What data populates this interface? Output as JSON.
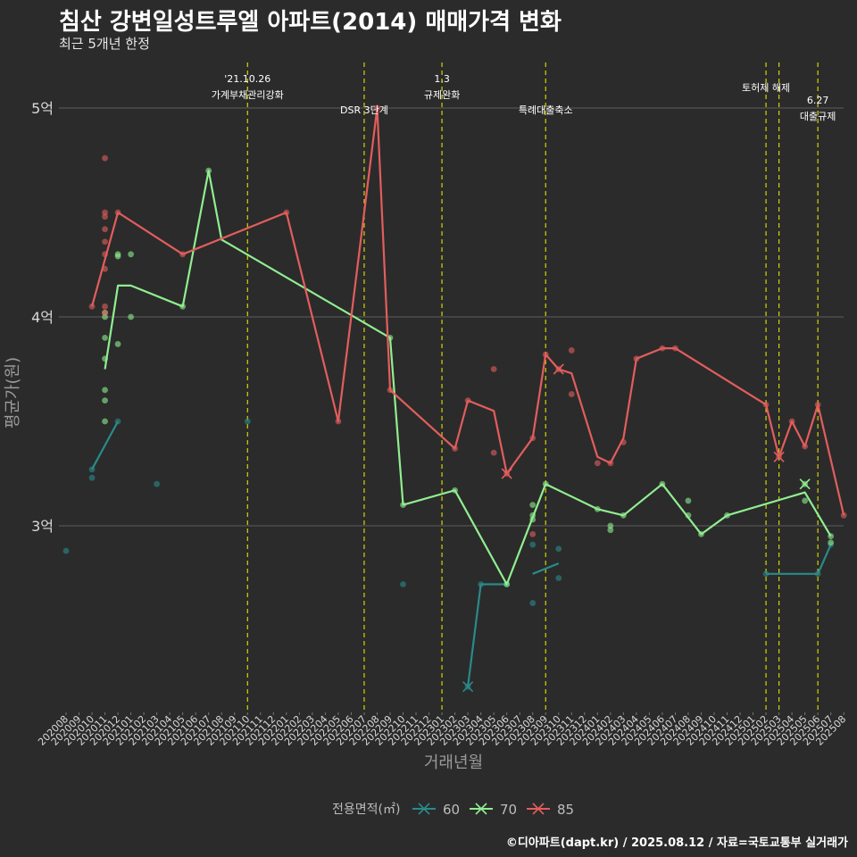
{
  "title": "침산 강변일성트루엘 아파트(2014) 매매가격 변화",
  "subtitle": "최근 5개년 한정",
  "footer": "©디아파트(dapt.kr) / 2025.08.12 / 자료=국토교통부 실거래가",
  "chart_data": {
    "type": "line",
    "xlabel": "거래년월",
    "ylabel": "평균가(원)",
    "ylim": [
      2.15,
      5.3
    ],
    "yticks": [
      {
        "v": 3,
        "label": "3억"
      },
      {
        "v": 4,
        "label": "4억"
      },
      {
        "v": 5,
        "label": "5억"
      }
    ],
    "grid": true,
    "legend_title": "전용면적(㎡)",
    "legend_position": "bottom",
    "categories": [
      "202008",
      "202009",
      "202010",
      "202011",
      "202012",
      "202101",
      "202102",
      "202103",
      "202104",
      "202105",
      "202106",
      "202107",
      "202108",
      "202109",
      "202110",
      "202111",
      "202112",
      "202201",
      "202202",
      "202203",
      "202204",
      "202205",
      "202206",
      "202207",
      "202208",
      "202209",
      "202210",
      "202211",
      "202212",
      "202301",
      "202302",
      "202303",
      "202304",
      "202305",
      "202306",
      "202307",
      "202308",
      "202309",
      "202310",
      "202311",
      "202312",
      "202401",
      "202402",
      "202403",
      "202404",
      "202405",
      "202406",
      "202407",
      "202408",
      "202409",
      "202410",
      "202411",
      "202412",
      "202501",
      "202502",
      "202503",
      "202504",
      "202505",
      "202506",
      "202507",
      "202508"
    ],
    "series": [
      {
        "name": "60",
        "color": "#2a8a8a",
        "lines": [
          [
            [
              "202010",
              3.27
            ],
            [
              "202012",
              3.5
            ]
          ],
          [
            [
              "202303",
              2.23
            ],
            [
              "202304",
              2.72
            ],
            [
              "202306",
              2.72
            ]
          ],
          [
            [
              "202308",
              2.77
            ],
            [
              "202310",
              2.82
            ]
          ],
          [
            [
              "202502",
              2.77
            ],
            [
              "202506",
              2.77
            ],
            [
              "202507",
              2.91
            ]
          ]
        ],
        "points": [
          [
            "202008",
            2.88
          ],
          [
            "202010",
            3.23
          ],
          [
            "202010",
            3.27
          ],
          [
            "202012",
            3.5
          ],
          [
            "202103",
            3.2
          ],
          [
            "202110",
            3.5
          ],
          [
            "202210",
            2.72
          ],
          [
            "202303",
            2.23
          ],
          [
            "202304",
            2.72
          ],
          [
            "202306",
            2.72
          ],
          [
            "202308",
            2.63
          ],
          [
            "202308",
            2.91
          ],
          [
            "202310",
            2.75
          ],
          [
            "202310",
            2.89
          ],
          [
            "202502",
            2.77
          ],
          [
            "202506",
            2.77
          ],
          [
            "202507",
            2.91
          ]
        ],
        "crosses": [
          [
            "202303",
            2.23
          ]
        ]
      },
      {
        "name": "70",
        "color": "#90ee90",
        "lines": [
          [
            [
              "202011",
              3.75
            ],
            [
              "202012",
              4.15
            ],
            [
              "202101",
              4.15
            ],
            [
              "202105",
              4.05
            ],
            [
              "202107",
              4.7
            ],
            [
              "202108",
              4.37
            ],
            [
              "202209",
              3.9
            ],
            [
              "202210",
              3.1
            ],
            [
              "202302",
              3.17
            ],
            [
              "202306",
              2.72
            ],
            [
              "202309",
              3.2
            ],
            [
              "202401",
              3.08
            ],
            [
              "202403",
              3.05
            ],
            [
              "202406",
              3.2
            ],
            [
              "202409",
              2.96
            ],
            [
              "202411",
              3.05
            ],
            [
              "202505",
              3.16
            ],
            [
              "202507",
              2.95
            ]
          ]
        ],
        "points": [
          [
            "202011",
            3.5
          ],
          [
            "202011",
            3.6
          ],
          [
            "202011",
            3.65
          ],
          [
            "202011",
            3.8
          ],
          [
            "202011",
            3.9
          ],
          [
            "202011",
            4.0
          ],
          [
            "202011",
            4.02
          ],
          [
            "202012",
            3.87
          ],
          [
            "202012",
            4.3
          ],
          [
            "202012",
            4.29
          ],
          [
            "202101",
            4.0
          ],
          [
            "202101",
            4.3
          ],
          [
            "202105",
            4.05
          ],
          [
            "202107",
            4.7
          ],
          [
            "202209",
            3.9
          ],
          [
            "202210",
            3.1
          ],
          [
            "202302",
            3.17
          ],
          [
            "202306",
            2.72
          ],
          [
            "202308",
            3.03
          ],
          [
            "202308",
            3.05
          ],
          [
            "202308",
            3.1
          ],
          [
            "202309",
            3.2
          ],
          [
            "202401",
            3.08
          ],
          [
            "202402",
            2.98
          ],
          [
            "202402",
            3.0
          ],
          [
            "202403",
            3.05
          ],
          [
            "202406",
            3.2
          ],
          [
            "202408",
            3.05
          ],
          [
            "202408",
            3.12
          ],
          [
            "202409",
            2.96
          ],
          [
            "202411",
            3.05
          ],
          [
            "202505",
            3.12
          ],
          [
            "202505",
            3.2
          ],
          [
            "202507",
            2.92
          ],
          [
            "202507",
            2.95
          ]
        ],
        "crosses": [
          [
            "202505",
            3.2
          ]
        ]
      },
      {
        "name": "85",
        "color": "#e35d5d",
        "lines": [
          [
            [
              "202010",
              4.05
            ],
            [
              "202012",
              4.5
            ],
            [
              "202105",
              4.3
            ],
            [
              "202201",
              4.5
            ],
            [
              "202205",
              3.5
            ],
            [
              "202208",
              5.0
            ],
            [
              "202209",
              3.65
            ],
            [
              "202302",
              3.37
            ],
            [
              "202303",
              3.6
            ],
            [
              "202305",
              3.55
            ],
            [
              "202306",
              3.25
            ],
            [
              "202308",
              3.42
            ],
            [
              "202309",
              3.82
            ],
            [
              "202310",
              3.75
            ],
            [
              "202311",
              3.73
            ],
            [
              "202401",
              3.33
            ],
            [
              "202402",
              3.3
            ],
            [
              "202403",
              3.42
            ],
            [
              "202404",
              3.8
            ],
            [
              "202406",
              3.85
            ],
            [
              "202407",
              3.85
            ],
            [
              "202502",
              3.58
            ],
            [
              "202503",
              3.33
            ],
            [
              "202504",
              3.5
            ],
            [
              "202505",
              3.38
            ],
            [
              "202506",
              3.58
            ],
            [
              "202508",
              3.05
            ]
          ]
        ],
        "points": [
          [
            "202010",
            4.05
          ],
          [
            "202011",
            4.76
          ],
          [
            "202011",
            4.5
          ],
          [
            "202011",
            4.48
          ],
          [
            "202011",
            4.42
          ],
          [
            "202011",
            4.36
          ],
          [
            "202011",
            4.3
          ],
          [
            "202011",
            4.23
          ],
          [
            "202011",
            4.05
          ],
          [
            "202011",
            4.02
          ],
          [
            "202012",
            4.5
          ],
          [
            "202105",
            4.3
          ],
          [
            "202201",
            4.5
          ],
          [
            "202205",
            3.5
          ],
          [
            "202208",
            5.0
          ],
          [
            "202209",
            3.65
          ],
          [
            "202302",
            3.37
          ],
          [
            "202303",
            3.6
          ],
          [
            "202305",
            3.75
          ],
          [
            "202305",
            3.35
          ],
          [
            "202306",
            3.25
          ],
          [
            "202308",
            2.96
          ],
          [
            "202308",
            3.42
          ],
          [
            "202309",
            3.82
          ],
          [
            "202310",
            3.75
          ],
          [
            "202311",
            3.84
          ],
          [
            "202311",
            3.63
          ],
          [
            "202401",
            3.3
          ],
          [
            "202402",
            3.3
          ],
          [
            "202403",
            3.4
          ],
          [
            "202404",
            3.8
          ],
          [
            "202406",
            3.85
          ],
          [
            "202407",
            3.85
          ],
          [
            "202502",
            3.58
          ],
          [
            "202503",
            3.33
          ],
          [
            "202504",
            3.5
          ],
          [
            "202505",
            3.38
          ],
          [
            "202506",
            3.58
          ],
          [
            "202508",
            3.05
          ]
        ],
        "crosses": [
          [
            "202306",
            3.25
          ],
          [
            "202310",
            3.75
          ],
          [
            "202503",
            3.33
          ]
        ]
      }
    ],
    "annotations": [
      {
        "x": "202110",
        "lines": [
          "'21.10.26",
          "가계부채관리강화"
        ]
      },
      {
        "x": "202207",
        "lines": [
          "DSR 3단계"
        ]
      },
      {
        "x": "202301",
        "lines": [
          "1.3",
          "규제완화"
        ]
      },
      {
        "x": "202309",
        "lines": [
          "특례대출축소"
        ]
      },
      {
        "x": "202502",
        "lines": [
          "토허제 해제"
        ]
      },
      {
        "x": "202503",
        "lines": [
          ""
        ]
      },
      {
        "x": "202506",
        "lines": [
          "6.27",
          "대출규제"
        ]
      }
    ]
  }
}
